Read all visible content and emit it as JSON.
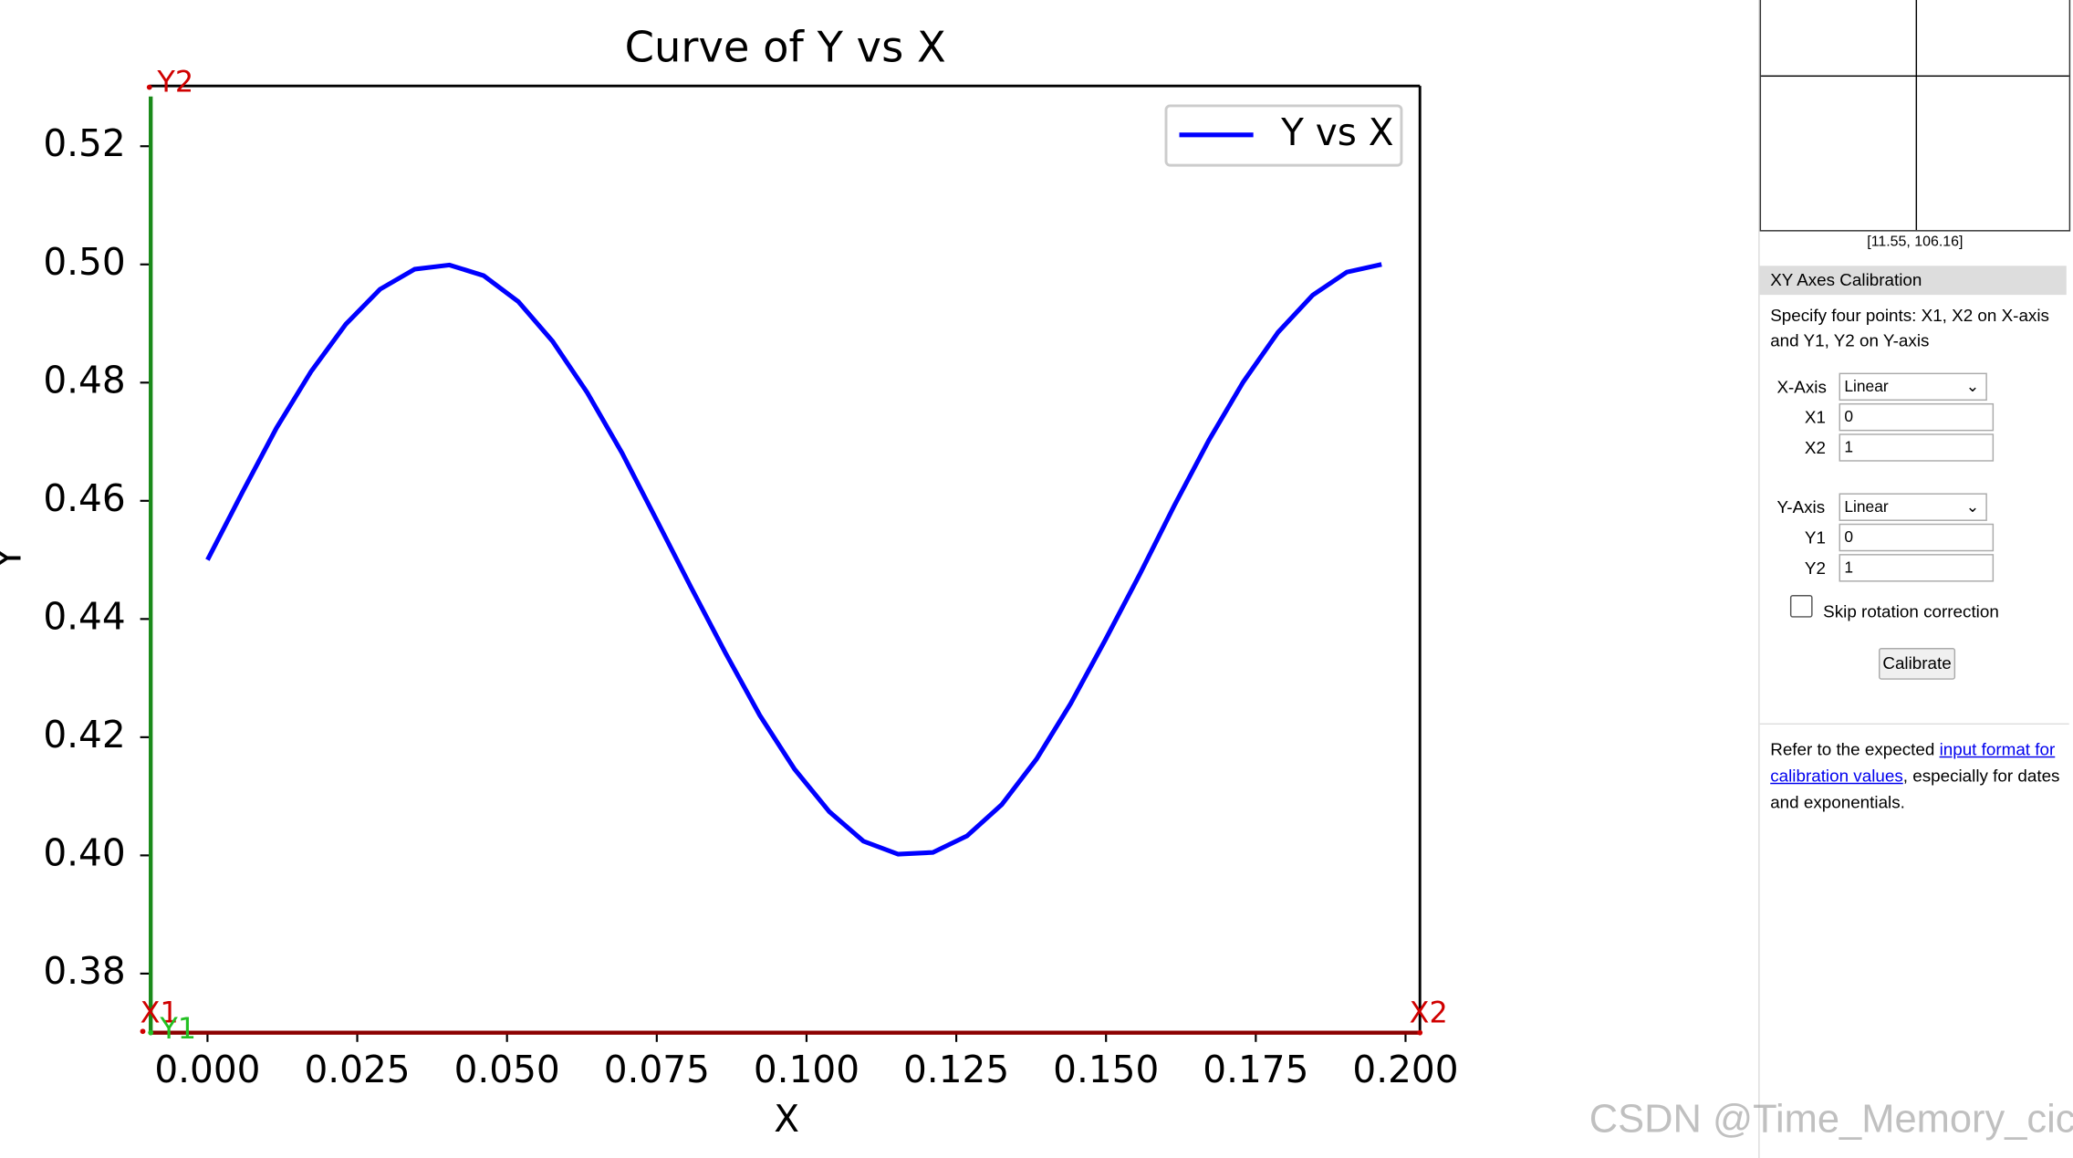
{
  "chart_data": {
    "type": "line",
    "title": "Curve of Y vs X",
    "xlabel": "X",
    "ylabel": "Y",
    "x": [
      0,
      0.0058,
      0.0115,
      0.0173,
      0.0231,
      0.0288,
      0.0346,
      0.0404,
      0.0461,
      0.0519,
      0.0576,
      0.0634,
      0.0692,
      0.0749,
      0.0807,
      0.0865,
      0.0922,
      0.098,
      0.1038,
      0.1095,
      0.1153,
      0.1211,
      0.1268,
      0.1326,
      0.1384,
      0.1441,
      0.1499,
      0.1557,
      0.1614,
      0.1672,
      0.1729,
      0.1787,
      0.1845,
      0.1902,
      0.196
    ],
    "series": [
      {
        "name": "Y vs X",
        "color": "#0000ff",
        "values": [
          0.45,
          0.4614,
          0.4723,
          0.4819,
          0.4899,
          0.4958,
          0.4992,
          0.4999,
          0.4981,
          0.4937,
          0.487,
          0.4783,
          0.4681,
          0.4569,
          0.4454,
          0.4342,
          0.4237,
          0.4146,
          0.4074,
          0.4024,
          0.4002,
          0.4005,
          0.4033,
          0.4086,
          0.4163,
          0.4257,
          0.4365,
          0.4477,
          0.4592,
          0.4703,
          0.4801,
          0.4885,
          0.4948,
          0.4987,
          0.5
        ]
      }
    ],
    "xlim": [
      -0.0097,
      0.2024
    ],
    "ylim": [
      0.37,
      0.5302
    ],
    "xticks": [
      {
        "value": 0,
        "label": "0.000"
      },
      0.025,
      {
        "value": 0.05,
        "label": "0.050"
      },
      0.075,
      {
        "value": 0.1,
        "label": "0.100"
      },
      0.125,
      {
        "value": 0.15,
        "label": "0.150"
      },
      0.175,
      {
        "value": 0.2,
        "label": "0.200"
      }
    ],
    "yticks": [
      0.38,
      {
        "value": 0.4,
        "label": "0.40"
      },
      0.42,
      0.44,
      0.46,
      0.48,
      {
        "value": 0.5,
        "label": "0.50"
      },
      0.52
    ],
    "legend": "upper right",
    "calibration_labels": [
      "X1",
      "Y1",
      "X2",
      "Y2"
    ]
  },
  "panel": {
    "coordinates": "[11.55, 106.16]",
    "header": "XY Axes Calibration",
    "instructions": "Specify four points: X1, X2 on X-axis and Y1, Y2 on Y-axis",
    "x_axis": {
      "label": "X-Axis",
      "scale": "Linear",
      "x1_label": "X1",
      "x1": "0",
      "x2_label": "X2",
      "x2": "1"
    },
    "y_axis": {
      "label": "Y-Axis",
      "scale": "Linear",
      "y1_label": "Y1",
      "y1": "0",
      "y2_label": "Y2",
      "y2": "1"
    },
    "checkbox": "Skip rotation correction",
    "button": "Calibrate",
    "note_before": "Refer to the expected ",
    "note_link": "input format for calibration values",
    "note_after": ", especially for dates and exponentials."
  },
  "watermark": "CSDN @Time_Memory_cici"
}
